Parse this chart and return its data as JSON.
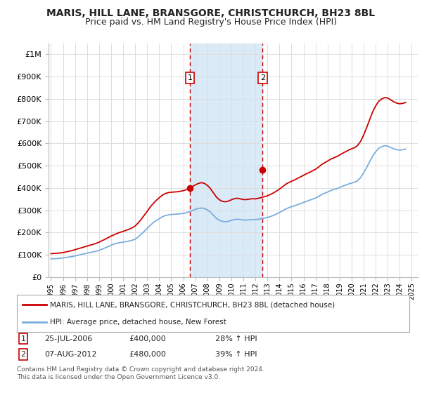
{
  "title": "MARIS, HILL LANE, BRANSGORE, CHRISTCHURCH, BH23 8BL",
  "subtitle": "Price paid vs. HM Land Registry's House Price Index (HPI)",
  "title_fontsize": 10,
  "subtitle_fontsize": 9,
  "xlim": [
    1994.8,
    2025.5
  ],
  "ylim": [
    0,
    1050000
  ],
  "yticks": [
    0,
    100000,
    200000,
    300000,
    400000,
    500000,
    600000,
    700000,
    800000,
    900000,
    1000000
  ],
  "ytick_labels": [
    "£0",
    "£100K",
    "£200K",
    "£300K",
    "£400K",
    "£500K",
    "£600K",
    "£700K",
    "£800K",
    "£900K",
    "£1M"
  ],
  "background_color": "#ffffff",
  "plot_bg_color": "#ffffff",
  "grid_color": "#dddddd",
  "sale1_x": 2006.56,
  "sale1_y": 400000,
  "sale1_label": "1",
  "sale1_date": "25-JUL-2006",
  "sale1_price": "£400,000",
  "sale1_hpi": "28% ↑ HPI",
  "sale2_x": 2012.6,
  "sale2_y": 480000,
  "sale2_label": "2",
  "sale2_date": "07-AUG-2012",
  "sale2_price": "£480,000",
  "sale2_hpi": "39% ↑ HPI",
  "red_line_color": "#cc0000",
  "blue_line_color": "#7aaddc",
  "shade_color": "#daeaf7",
  "legend_line1": "MARIS, HILL LANE, BRANSGORE, CHRISTCHURCH, BH23 8BL (detached house)",
  "legend_line2": "HPI: Average price, detached house, New Forest",
  "footer1": "Contains HM Land Registry data © Crown copyright and database right 2024.",
  "footer2": "This data is licensed under the Open Government Licence v3.0.",
  "hpi_years": [
    1995.0,
    1995.25,
    1995.5,
    1995.75,
    1996.0,
    1996.25,
    1996.5,
    1996.75,
    1997.0,
    1997.25,
    1997.5,
    1997.75,
    1998.0,
    1998.25,
    1998.5,
    1998.75,
    1999.0,
    1999.25,
    1999.5,
    1999.75,
    2000.0,
    2000.25,
    2000.5,
    2000.75,
    2001.0,
    2001.25,
    2001.5,
    2001.75,
    2002.0,
    2002.25,
    2002.5,
    2002.75,
    2003.0,
    2003.25,
    2003.5,
    2003.75,
    2004.0,
    2004.25,
    2004.5,
    2004.75,
    2005.0,
    2005.25,
    2005.5,
    2005.75,
    2006.0,
    2006.25,
    2006.5,
    2006.75,
    2007.0,
    2007.25,
    2007.5,
    2007.75,
    2008.0,
    2008.25,
    2008.5,
    2008.75,
    2009.0,
    2009.25,
    2009.5,
    2009.75,
    2010.0,
    2010.25,
    2010.5,
    2010.75,
    2011.0,
    2011.25,
    2011.5,
    2011.75,
    2012.0,
    2012.25,
    2012.5,
    2012.75,
    2013.0,
    2013.25,
    2013.5,
    2013.75,
    2014.0,
    2014.25,
    2014.5,
    2014.75,
    2015.0,
    2015.25,
    2015.5,
    2015.75,
    2016.0,
    2016.25,
    2016.5,
    2016.75,
    2017.0,
    2017.25,
    2017.5,
    2017.75,
    2018.0,
    2018.25,
    2018.5,
    2018.75,
    2019.0,
    2019.25,
    2019.5,
    2019.75,
    2020.0,
    2020.25,
    2020.5,
    2020.75,
    2021.0,
    2021.25,
    2021.5,
    2021.75,
    2022.0,
    2022.25,
    2022.5,
    2022.75,
    2023.0,
    2023.25,
    2023.5,
    2023.75,
    2024.0,
    2024.25,
    2024.5
  ],
  "hpi_values": [
    82000,
    82500,
    83000,
    84000,
    86000,
    88000,
    90000,
    92000,
    95000,
    98000,
    101000,
    104000,
    107000,
    110000,
    113000,
    116000,
    120000,
    125000,
    131000,
    137000,
    143000,
    148000,
    152000,
    155000,
    157000,
    159000,
    162000,
    165000,
    170000,
    180000,
    192000,
    205000,
    218000,
    232000,
    244000,
    254000,
    262000,
    270000,
    276000,
    279000,
    281000,
    282000,
    283000,
    284000,
    286000,
    289000,
    293000,
    298000,
    304000,
    308000,
    310000,
    308000,
    302000,
    292000,
    278000,
    264000,
    255000,
    250000,
    248000,
    250000,
    255000,
    258000,
    260000,
    258000,
    256000,
    256000,
    257000,
    258000,
    258000,
    260000,
    262000,
    265000,
    268000,
    272000,
    277000,
    283000,
    290000,
    297000,
    305000,
    311000,
    316000,
    320000,
    325000,
    330000,
    335000,
    340000,
    345000,
    350000,
    355000,
    362000,
    370000,
    376000,
    382000,
    388000,
    393000,
    397000,
    402000,
    408000,
    413000,
    418000,
    422000,
    426000,
    433000,
    447000,
    468000,
    492000,
    518000,
    543000,
    563000,
    578000,
    586000,
    590000,
    588000,
    582000,
    576000,
    572000,
    570000,
    572000,
    575000
  ],
  "red_years": [
    1995.0,
    1995.25,
    1995.5,
    1995.75,
    1996.0,
    1996.25,
    1996.5,
    1996.75,
    1997.0,
    1997.25,
    1997.5,
    1997.75,
    1998.0,
    1998.25,
    1998.5,
    1998.75,
    1999.0,
    1999.25,
    1999.5,
    1999.75,
    2000.0,
    2000.25,
    2000.5,
    2000.75,
    2001.0,
    2001.25,
    2001.5,
    2001.75,
    2002.0,
    2002.25,
    2002.5,
    2002.75,
    2003.0,
    2003.25,
    2003.5,
    2003.75,
    2004.0,
    2004.25,
    2004.5,
    2004.75,
    2005.0,
    2005.25,
    2005.5,
    2005.75,
    2006.0,
    2006.25,
    2006.5,
    2006.75,
    2007.0,
    2007.25,
    2007.5,
    2007.75,
    2008.0,
    2008.25,
    2008.5,
    2008.75,
    2009.0,
    2009.25,
    2009.5,
    2009.75,
    2010.0,
    2010.25,
    2010.5,
    2010.75,
    2011.0,
    2011.25,
    2011.5,
    2011.75,
    2012.0,
    2012.25,
    2012.5,
    2012.75,
    2013.0,
    2013.25,
    2013.5,
    2013.75,
    2014.0,
    2014.25,
    2014.5,
    2014.75,
    2015.0,
    2015.25,
    2015.5,
    2015.75,
    2016.0,
    2016.25,
    2016.5,
    2016.75,
    2017.0,
    2017.25,
    2017.5,
    2017.75,
    2018.0,
    2018.25,
    2018.5,
    2018.75,
    2019.0,
    2019.25,
    2019.5,
    2019.75,
    2020.0,
    2020.25,
    2020.5,
    2020.75,
    2021.0,
    2021.25,
    2021.5,
    2021.75,
    2022.0,
    2022.25,
    2022.5,
    2022.75,
    2023.0,
    2023.25,
    2023.5,
    2023.75,
    2024.0,
    2024.25,
    2024.5
  ],
  "red_values": [
    105000,
    106000,
    107000,
    108000,
    110000,
    113000,
    116000,
    119000,
    123000,
    127000,
    131000,
    135000,
    139000,
    143000,
    147000,
    151000,
    157000,
    163000,
    170000,
    177000,
    184000,
    190000,
    196000,
    201000,
    205000,
    210000,
    215000,
    221000,
    229000,
    243000,
    259000,
    277000,
    295000,
    314000,
    330000,
    344000,
    356000,
    367000,
    375000,
    379000,
    381000,
    382000,
    383000,
    385000,
    388000,
    392000,
    398000,
    406000,
    414000,
    420000,
    424000,
    421000,
    412000,
    398000,
    379000,
    360000,
    347000,
    340000,
    338000,
    341000,
    347000,
    352000,
    354000,
    351000,
    348000,
    348000,
    350000,
    352000,
    351000,
    354000,
    357000,
    361000,
    365000,
    371000,
    378000,
    386000,
    395000,
    405000,
    416000,
    424000,
    430000,
    436000,
    443000,
    450000,
    457000,
    464000,
    470000,
    477000,
    484000,
    494000,
    505000,
    513000,
    521000,
    529000,
    535000,
    541000,
    548000,
    556000,
    563000,
    570000,
    576000,
    581000,
    591000,
    610000,
    638000,
    671000,
    707000,
    742000,
    769000,
    789000,
    800000,
    806000,
    804000,
    796000,
    787000,
    781000,
    778000,
    780000,
    784000
  ]
}
